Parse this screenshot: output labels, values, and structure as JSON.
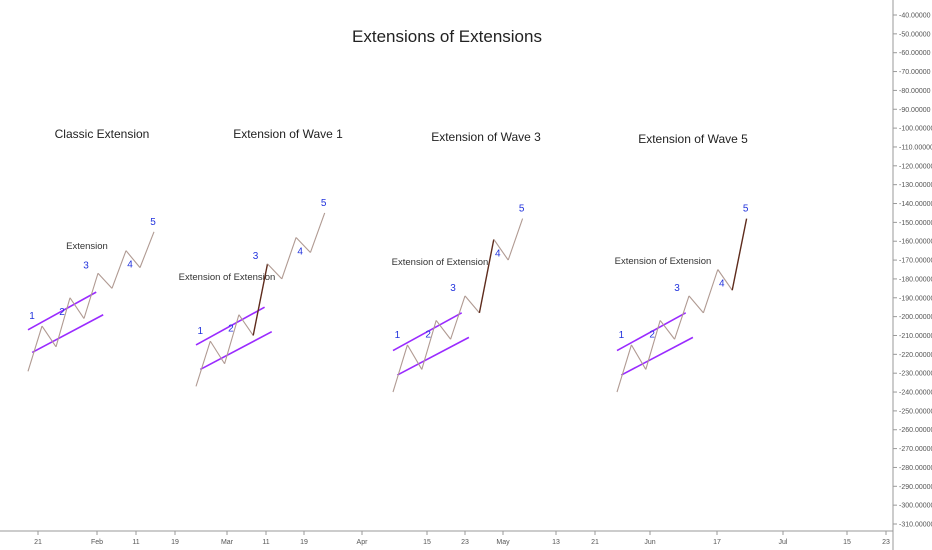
{
  "chart_data": {
    "type": "line",
    "title": "Extensions of Extensions",
    "grid": false,
    "y_axis": {
      "position": "right",
      "ylim": [
        -312,
        -38
      ],
      "ticks": [
        -40,
        -50,
        -60,
        -70,
        -80,
        -90,
        -100,
        -110,
        -120,
        -130,
        -140,
        -150,
        -160,
        -170,
        -180,
        -190,
        -200,
        -210,
        -220,
        -230,
        -240,
        -250,
        -260,
        -270,
        -280,
        -290,
        -300,
        -310
      ],
      "tick_labels": [
        "-40.00000",
        "-50.00000",
        "-60.00000",
        "-70.00000",
        "-80.00000",
        "-90.00000",
        "-100.00000",
        "-110.00000",
        "-120.00000",
        "-130.00000",
        "-140.00000",
        "-150.00000",
        "-160.00000",
        "-170.00000",
        "-180.00000",
        "-190.00000",
        "-200.00000",
        "-210.00000",
        "-220.00000",
        "-230.00000",
        "-240.00000",
        "-250.00000",
        "-260.00000",
        "-270.00000",
        "-280.00000",
        "-290.00000",
        "-300.00000",
        "-310.00000"
      ]
    },
    "x_axis": {
      "tick_labels": [
        "21",
        "Feb",
        "11",
        "19",
        "Mar",
        "11",
        "19",
        "Apr",
        "15",
        "23",
        "May",
        "13",
        "21",
        "Jun",
        "17",
        "Jul",
        "15",
        "23"
      ]
    },
    "panels": [
      {
        "title": "Classic Extension",
        "annotation": "Extension",
        "wave_labels": [
          "1",
          "2",
          "3",
          "4",
          "5"
        ],
        "points": [
          [
            0,
            -229
          ],
          [
            1,
            -205
          ],
          [
            2,
            -216
          ],
          [
            3,
            -190
          ],
          [
            4,
            -201
          ],
          [
            5,
            -177
          ],
          [
            6,
            -185
          ],
          [
            7,
            -165
          ],
          [
            8,
            -174
          ],
          [
            9,
            -155
          ]
        ],
        "extended_segments": [],
        "channel_upper": [
          [
            0,
            -207
          ],
          [
            1.3,
            -187
          ]
        ],
        "channel_lower": [
          [
            0.3,
            -219
          ],
          [
            1.8,
            -199
          ]
        ]
      },
      {
        "title": "Extension of Wave 1",
        "annotation": "Extension of Extension",
        "wave_labels": [
          "1",
          "2",
          "3",
          "4",
          "5"
        ],
        "points": [
          [
            0,
            -237
          ],
          [
            1,
            -213
          ],
          [
            2,
            -225
          ],
          [
            3,
            -199
          ],
          [
            4,
            -210
          ],
          [
            5,
            -172
          ],
          [
            6,
            -180
          ],
          [
            7,
            -158
          ],
          [
            8,
            -166
          ],
          [
            9,
            -145
          ]
        ],
        "extended_segments": [
          4
        ],
        "channel_upper": [
          [
            0,
            -215
          ],
          [
            1.3,
            -195
          ]
        ],
        "channel_lower": [
          [
            0.3,
            -228
          ],
          [
            1.8,
            -208
          ]
        ]
      },
      {
        "title": "Extension of Wave 3",
        "annotation": "Extension of Extension",
        "wave_labels": [
          "1",
          "2",
          "3",
          "4",
          "5"
        ],
        "points": [
          [
            0,
            -240
          ],
          [
            1,
            -215
          ],
          [
            2,
            -228
          ],
          [
            3,
            -202
          ],
          [
            4,
            -212
          ],
          [
            5,
            -189
          ],
          [
            6,
            -198
          ],
          [
            7,
            -159
          ],
          [
            8,
            -170
          ],
          [
            9,
            -148
          ]
        ],
        "extended_segments": [
          6
        ],
        "channel_upper": [
          [
            0,
            -218
          ],
          [
            1.3,
            -198
          ]
        ],
        "channel_lower": [
          [
            0.3,
            -231
          ],
          [
            1.8,
            -211
          ]
        ]
      },
      {
        "title": "Extension of Wave 5",
        "annotation": "Extension of Extension",
        "wave_labels": [
          "1",
          "2",
          "3",
          "4",
          "5"
        ],
        "points": [
          [
            0,
            -240
          ],
          [
            1,
            -215
          ],
          [
            2,
            -228
          ],
          [
            3,
            -202
          ],
          [
            4,
            -212
          ],
          [
            5,
            -189
          ],
          [
            6,
            -198
          ],
          [
            7,
            -175
          ],
          [
            8,
            -186
          ],
          [
            9,
            -148
          ]
        ],
        "extended_segments": [
          8
        ],
        "channel_upper": [
          [
            0,
            -218
          ],
          [
            1.3,
            -198
          ]
        ],
        "channel_lower": [
          [
            0.3,
            -231
          ],
          [
            1.8,
            -211
          ]
        ]
      }
    ],
    "colors": {
      "wave_line": "#b09a92",
      "extended_line": "#5e2b1c",
      "channel": "#9a2bff",
      "wave_label": "#2233dd",
      "axis": "#999999",
      "text": "#222222"
    }
  }
}
